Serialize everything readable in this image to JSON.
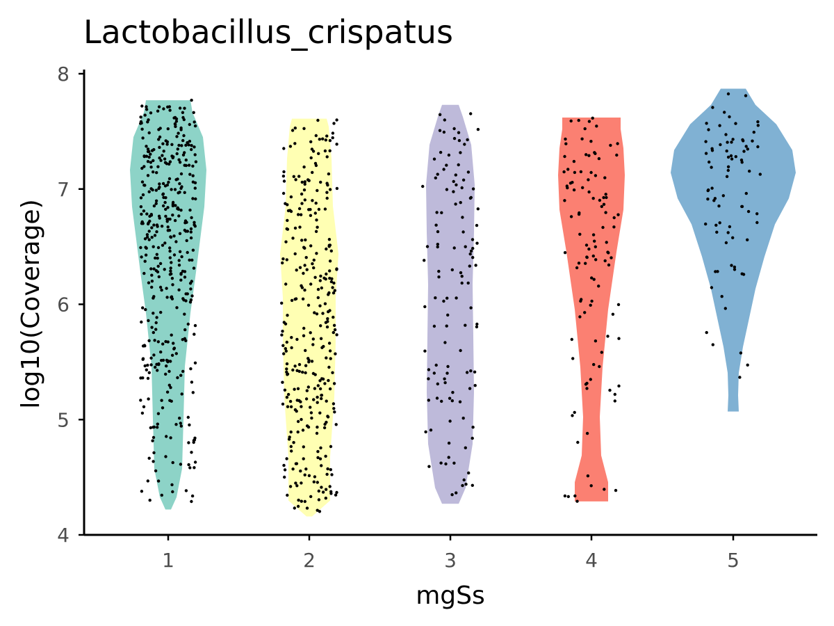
{
  "chart_data": {
    "type": "violin",
    "title": "Lactobacillus_crispatus",
    "xlabel": "mgSs",
    "ylabel": "log10(Coverage)",
    "ylim": [
      4,
      8
    ],
    "yticks": [
      "4",
      "5",
      "6",
      "7",
      "8"
    ],
    "categories": [
      "1",
      "2",
      "3",
      "4",
      "5"
    ],
    "grid": false,
    "legend": "none",
    "series": [
      {
        "category": "1",
        "color": "#8DD3C7",
        "ymin": 4.22,
        "ymax": 7.77,
        "points": 420
      },
      {
        "category": "2",
        "color": "#FFFFB3",
        "ymin": 4.16,
        "ymax": 7.61,
        "points": 320
      },
      {
        "category": "3",
        "color": "#BEBADA",
        "ymin": 4.27,
        "ymax": 7.73,
        "points": 120
      },
      {
        "category": "4",
        "color": "#FB8072",
        "ymin": 4.29,
        "ymax": 7.62,
        "points": 110
      },
      {
        "category": "5",
        "color": "#80B1D3",
        "ymin": 5.07,
        "ymax": 7.87,
        "points": 80
      }
    ]
  }
}
